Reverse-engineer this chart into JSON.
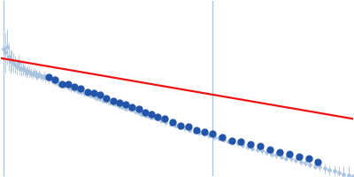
{
  "figsize": [
    4.0,
    2.0
  ],
  "dpi": 100,
  "bg_color": "#ffffff",
  "all_color": "#aac4de",
  "selected_color": "#2255aa",
  "fit_color": "#ee1111",
  "vline_color": "#aac4de",
  "xlim": [
    0.0,
    0.22
  ],
  "ylim": [
    -1.0,
    1.2
  ],
  "vline1_x": 0.002,
  "vline2_x": 0.132,
  "fit_x": [
    0.0,
    0.22
  ],
  "fit_y": [
    0.48,
    -0.28
  ],
  "all_points": [
    [
      0.002,
      0.6,
      0.3
    ],
    [
      0.003,
      0.55,
      0.25
    ],
    [
      0.004,
      0.62,
      0.22
    ],
    [
      0.005,
      0.5,
      0.18
    ],
    [
      0.006,
      0.44,
      0.15
    ],
    [
      0.007,
      0.45,
      0.13
    ],
    [
      0.008,
      0.42,
      0.12
    ],
    [
      0.009,
      0.4,
      0.11
    ],
    [
      0.01,
      0.38,
      0.1
    ],
    [
      0.011,
      0.42,
      0.1
    ],
    [
      0.012,
      0.36,
      0.09
    ],
    [
      0.013,
      0.34,
      0.09
    ],
    [
      0.014,
      0.35,
      0.08
    ],
    [
      0.015,
      0.33,
      0.08
    ],
    [
      0.016,
      0.3,
      0.07
    ],
    [
      0.017,
      0.32,
      0.07
    ],
    [
      0.018,
      0.31,
      0.07
    ],
    [
      0.019,
      0.29,
      0.06
    ],
    [
      0.02,
      0.28,
      0.06
    ],
    [
      0.021,
      0.3,
      0.06
    ],
    [
      0.022,
      0.27,
      0.06
    ],
    [
      0.023,
      0.26,
      0.05
    ],
    [
      0.024,
      0.28,
      0.05
    ],
    [
      0.025,
      0.25,
      0.05
    ],
    [
      0.026,
      0.24,
      0.05
    ],
    [
      0.027,
      0.26,
      0.05
    ],
    [
      0.028,
      0.23,
      0.05
    ],
    [
      0.03,
      0.22,
      0.05
    ],
    [
      0.032,
      0.2,
      0.05
    ],
    [
      0.034,
      0.18,
      0.05
    ],
    [
      0.036,
      0.16,
      0.04
    ],
    [
      0.038,
      0.15,
      0.04
    ],
    [
      0.04,
      0.13,
      0.04
    ],
    [
      0.042,
      0.12,
      0.04
    ],
    [
      0.044,
      0.1,
      0.04
    ],
    [
      0.046,
      0.09,
      0.04
    ],
    [
      0.048,
      0.07,
      0.04
    ],
    [
      0.05,
      0.06,
      0.04
    ],
    [
      0.052,
      0.04,
      0.04
    ],
    [
      0.054,
      0.03,
      0.03
    ],
    [
      0.056,
      0.01,
      0.03
    ],
    [
      0.058,
      0.0,
      0.03
    ],
    [
      0.06,
      -0.02,
      0.03
    ],
    [
      0.062,
      -0.03,
      0.03
    ],
    [
      0.064,
      -0.05,
      0.03
    ],
    [
      0.066,
      -0.06,
      0.03
    ],
    [
      0.068,
      -0.08,
      0.03
    ],
    [
      0.07,
      -0.09,
      0.03
    ],
    [
      0.072,
      -0.1,
      0.03
    ],
    [
      0.074,
      -0.12,
      0.03
    ],
    [
      0.076,
      -0.13,
      0.03
    ],
    [
      0.078,
      -0.15,
      0.03
    ],
    [
      0.08,
      -0.16,
      0.03
    ],
    [
      0.082,
      -0.17,
      0.03
    ],
    [
      0.084,
      -0.19,
      0.03
    ],
    [
      0.086,
      -0.2,
      0.03
    ],
    [
      0.088,
      -0.22,
      0.03
    ],
    [
      0.09,
      -0.23,
      0.03
    ],
    [
      0.092,
      -0.24,
      0.03
    ],
    [
      0.094,
      -0.26,
      0.03
    ],
    [
      0.096,
      -0.27,
      0.03
    ],
    [
      0.098,
      -0.28,
      0.03
    ],
    [
      0.1,
      -0.3,
      0.03
    ],
    [
      0.103,
      -0.32,
      0.03
    ],
    [
      0.106,
      -0.34,
      0.03
    ],
    [
      0.109,
      -0.36,
      0.03
    ],
    [
      0.112,
      -0.38,
      0.03
    ],
    [
      0.115,
      -0.4,
      0.03
    ],
    [
      0.118,
      -0.42,
      0.03
    ],
    [
      0.121,
      -0.44,
      0.03
    ],
    [
      0.124,
      -0.45,
      0.03
    ],
    [
      0.127,
      -0.47,
      0.03
    ],
    [
      0.13,
      -0.49,
      0.03
    ],
    [
      0.133,
      -0.51,
      0.03
    ],
    [
      0.136,
      -0.52,
      0.03
    ],
    [
      0.139,
      -0.54,
      0.03
    ],
    [
      0.142,
      -0.56,
      0.03
    ],
    [
      0.145,
      -0.58,
      0.03
    ],
    [
      0.148,
      -0.59,
      0.03
    ],
    [
      0.151,
      -0.61,
      0.03
    ],
    [
      0.154,
      -0.63,
      0.03
    ],
    [
      0.157,
      -0.65,
      0.03
    ],
    [
      0.16,
      -0.66,
      0.04
    ],
    [
      0.163,
      -0.68,
      0.04
    ],
    [
      0.166,
      -0.7,
      0.04
    ],
    [
      0.169,
      -0.72,
      0.04
    ],
    [
      0.172,
      -0.73,
      0.04
    ],
    [
      0.175,
      -0.75,
      0.04
    ],
    [
      0.178,
      -0.77,
      0.04
    ],
    [
      0.181,
      -0.78,
      0.04
    ],
    [
      0.184,
      -0.8,
      0.04
    ],
    [
      0.187,
      -0.82,
      0.04
    ],
    [
      0.19,
      -0.83,
      0.05
    ],
    [
      0.193,
      -0.85,
      0.05
    ],
    [
      0.196,
      -0.87,
      0.05
    ],
    [
      0.199,
      -0.88,
      0.05
    ],
    [
      0.202,
      -0.9,
      0.06
    ],
    [
      0.205,
      -0.92,
      0.06
    ],
    [
      0.208,
      -0.93,
      0.07
    ],
    [
      0.211,
      -0.95,
      0.08
    ],
    [
      0.214,
      -0.97,
      0.09
    ],
    [
      0.217,
      -0.98,
      0.1
    ],
    [
      0.22,
      -1.0,
      0.12
    ]
  ],
  "selected_points": [
    [
      0.03,
      0.24
    ],
    [
      0.034,
      0.21
    ],
    [
      0.038,
      0.16
    ],
    [
      0.042,
      0.15
    ],
    [
      0.046,
      0.12
    ],
    [
      0.05,
      0.1
    ],
    [
      0.054,
      0.06
    ],
    [
      0.058,
      0.04
    ],
    [
      0.062,
      0.02
    ],
    [
      0.066,
      -0.02
    ],
    [
      0.07,
      -0.05
    ],
    [
      0.074,
      -0.08
    ],
    [
      0.078,
      -0.1
    ],
    [
      0.082,
      -0.13
    ],
    [
      0.086,
      -0.16
    ],
    [
      0.09,
      -0.2
    ],
    [
      0.094,
      -0.22
    ],
    [
      0.098,
      -0.25
    ],
    [
      0.102,
      -0.28
    ],
    [
      0.107,
      -0.32
    ],
    [
      0.112,
      -0.36
    ],
    [
      0.117,
      -0.38
    ],
    [
      0.122,
      -0.42
    ],
    [
      0.127,
      -0.44
    ],
    [
      0.132,
      -0.47
    ],
    [
      0.138,
      -0.51
    ],
    [
      0.144,
      -0.55
    ],
    [
      0.15,
      -0.56
    ],
    [
      0.156,
      -0.6
    ],
    [
      0.162,
      -0.62
    ],
    [
      0.168,
      -0.66
    ],
    [
      0.174,
      -0.7
    ],
    [
      0.18,
      -0.72
    ],
    [
      0.186,
      -0.75
    ],
    [
      0.192,
      -0.78
    ],
    [
      0.198,
      -0.82
    ]
  ]
}
